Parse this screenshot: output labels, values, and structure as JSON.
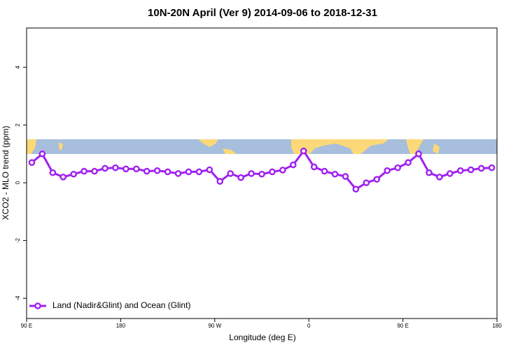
{
  "chart_data": {
    "type": "line",
    "title": "10N-20N April (Ver 9)   2014-09-06 to 2018-12-31",
    "x_label": "Longitude (deg E)",
    "y_label": "XCO2 - MLO trend (ppm)",
    "xlim": [
      90,
      540
    ],
    "ylim": [
      -4.7,
      5.36
    ],
    "xticks": [
      {
        "value": 90,
        "label": "90 E"
      },
      {
        "value": 180,
        "label": "180"
      },
      {
        "value": 270,
        "label": "90 W"
      },
      {
        "value": 360,
        "label": "0"
      },
      {
        "value": 450,
        "label": "90 E"
      },
      {
        "value": 540,
        "label": "180"
      }
    ],
    "yticks": [
      -4,
      -2,
      0,
      2,
      4
    ],
    "legend_position": "bottom-left",
    "x": [
      95,
      105,
      115,
      125,
      135,
      145,
      155,
      165,
      175,
      185,
      195,
      205,
      215,
      225,
      235,
      245,
      255,
      265,
      275,
      285,
      295,
      305,
      315,
      325,
      335,
      345,
      355,
      365,
      375,
      385,
      395,
      405,
      415,
      425,
      435,
      445,
      455,
      465,
      475,
      485,
      495,
      505,
      515,
      525,
      535
    ],
    "series": [
      {
        "name": "Land (Nadir&Glint) and Ocean (Glint)",
        "color": "#a020f0",
        "values": [
          0.7,
          1.0,
          0.35,
          0.2,
          0.3,
          0.4,
          0.4,
          0.5,
          0.52,
          0.48,
          0.48,
          0.4,
          0.42,
          0.38,
          0.32,
          0.38,
          0.38,
          0.45,
          0.05,
          0.32,
          0.18,
          0.32,
          0.3,
          0.38,
          0.44,
          0.62,
          1.1,
          0.55,
          0.4,
          0.3,
          0.22,
          -0.22,
          0.0,
          0.12,
          0.42,
          0.52,
          0.7,
          1.0,
          0.35,
          0.2,
          0.32,
          0.42,
          0.45,
          0.5,
          0.52
        ]
      }
    ]
  }
}
